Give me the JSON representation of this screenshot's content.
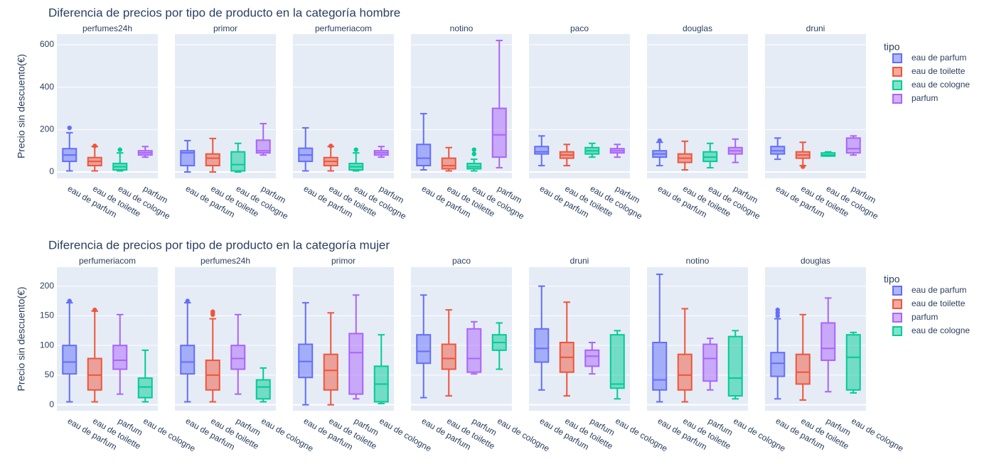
{
  "colors": {
    "eau de parfum": "#636efa",
    "eau de toilette": "#ef553b",
    "eau de cologne": "#00cc96",
    "parfum": "#ab63fa",
    "panel_bg": "#e5ecf6",
    "text": "#2a3f5f"
  },
  "chart_data": [
    {
      "type": "box",
      "title": "Diferencia de precios por tipo de producto en la categoría hombre",
      "ylabel": "Precio sin descuento(€)",
      "ylim": [
        -30,
        650
      ],
      "yticks": [
        0,
        200,
        400,
        600
      ],
      "legend_title": "tipo",
      "legend_position": "right",
      "grid": true,
      "categories": [
        "eau de parfum",
        "eau de toilette",
        "eau de cologne",
        "parfum"
      ],
      "facets": [
        {
          "name": "perfumes24h",
          "boxes": [
            {
              "q1": 50,
              "median": 80,
              "q3": 110,
              "low": 5,
              "high": 185,
              "outliers": [
                208
              ]
            },
            {
              "q1": 30,
              "median": 50,
              "q3": 68,
              "low": 5,
              "high": 120,
              "outliers": [
                123
              ]
            },
            {
              "q1": 10,
              "median": 25,
              "q3": 40,
              "low": 5,
              "high": 90,
              "outliers": [
                105
              ]
            },
            {
              "q1": 80,
              "median": 90,
              "q3": 100,
              "low": 70,
              "high": 120,
              "outliers": []
            }
          ]
        },
        {
          "name": "primor",
          "boxes": [
            {
              "q1": 30,
              "median": 90,
              "q3": 100,
              "low": 0,
              "high": 148,
              "outliers": []
            },
            {
              "q1": 30,
              "median": 65,
              "q3": 85,
              "low": 0,
              "high": 158,
              "outliers": []
            },
            {
              "q1": 5,
              "median": 35,
              "q3": 95,
              "low": 0,
              "high": 135,
              "outliers": []
            },
            {
              "q1": 90,
              "median": 100,
              "q3": 150,
              "low": 80,
              "high": 228,
              "outliers": []
            }
          ]
        },
        {
          "name": "perfumeriacom",
          "boxes": [
            {
              "q1": 50,
              "median": 80,
              "q3": 112,
              "low": 5,
              "high": 208,
              "outliers": []
            },
            {
              "q1": 30,
              "median": 50,
              "q3": 68,
              "low": 5,
              "high": 120,
              "outliers": [
                123
              ]
            },
            {
              "q1": 10,
              "median": 25,
              "q3": 40,
              "low": 5,
              "high": 90,
              "outliers": [
                105
              ]
            },
            {
              "q1": 80,
              "median": 90,
              "q3": 100,
              "low": 70,
              "high": 120,
              "outliers": []
            }
          ]
        },
        {
          "name": "notino",
          "boxes": [
            {
              "q1": 30,
              "median": 65,
              "q3": 130,
              "low": 10,
              "high": 275,
              "outliers": []
            },
            {
              "q1": 15,
              "median": 30,
              "q3": 65,
              "low": 5,
              "high": 115,
              "outliers": []
            },
            {
              "q1": 15,
              "median": 25,
              "q3": 40,
              "low": 5,
              "high": 60,
              "outliers": [
                85,
                105
              ]
            },
            {
              "q1": 70,
              "median": 175,
              "q3": 300,
              "low": 20,
              "high": 620,
              "outliers": []
            }
          ]
        },
        {
          "name": "paco",
          "boxes": [
            {
              "q1": 85,
              "median": 95,
              "q3": 120,
              "low": 30,
              "high": 170,
              "outliers": []
            },
            {
              "q1": 65,
              "median": 80,
              "q3": 95,
              "low": 30,
              "high": 130,
              "outliers": []
            },
            {
              "q1": 85,
              "median": 100,
              "q3": 115,
              "low": 70,
              "high": 135,
              "outliers": []
            },
            {
              "q1": 90,
              "median": 100,
              "q3": 110,
              "low": 70,
              "high": 130,
              "outliers": []
            }
          ]
        },
        {
          "name": "douglas",
          "boxes": [
            {
              "q1": 70,
              "median": 85,
              "q3": 100,
              "low": 30,
              "high": 140,
              "outliers": [
                148
              ]
            },
            {
              "q1": 45,
              "median": 65,
              "q3": 85,
              "low": 10,
              "high": 145,
              "outliers": []
            },
            {
              "q1": 50,
              "median": 70,
              "q3": 95,
              "low": 20,
              "high": 135,
              "outliers": []
            },
            {
              "q1": 85,
              "median": 100,
              "q3": 115,
              "low": 45,
              "high": 155,
              "outliers": []
            }
          ]
        },
        {
          "name": "druni",
          "boxes": [
            {
              "q1": 85,
              "median": 100,
              "q3": 120,
              "low": 60,
              "high": 160,
              "outliers": []
            },
            {
              "q1": 65,
              "median": 80,
              "q3": 95,
              "low": 30,
              "high": 140,
              "outliers": [
                25
              ]
            },
            {
              "q1": 75,
              "median": 80,
              "q3": 90,
              "low": 75,
              "high": 95,
              "outliers": []
            },
            {
              "q1": 90,
              "median": 110,
              "q3": 160,
              "low": 80,
              "high": 170,
              "outliers": []
            }
          ]
        }
      ]
    },
    {
      "type": "box",
      "title": "Diferencia de precios por tipo de producto en la categoría mujer",
      "ylabel": "Precio sin descuento(€)",
      "ylim": [
        -10,
        232
      ],
      "yticks": [
        0,
        50,
        100,
        150,
        200
      ],
      "legend_title": "tipo",
      "legend_position": "right",
      "grid": true,
      "categories": [
        "eau de parfum",
        "eau de toilette",
        "parfum",
        "eau de cologne"
      ],
      "facets": [
        {
          "name": "perfumeriacom",
          "boxes": [
            {
              "q1": 52,
              "median": 72,
              "q3": 100,
              "low": 5,
              "high": 172,
              "outliers": [
                175
              ]
            },
            {
              "q1": 25,
              "median": 50,
              "q3": 78,
              "low": 5,
              "high": 158,
              "outliers": [
                160
              ]
            },
            {
              "q1": 60,
              "median": 75,
              "q3": 100,
              "low": 18,
              "high": 152,
              "outliers": []
            },
            {
              "q1": 12,
              "median": 30,
              "q3": 45,
              "low": 5,
              "high": 92,
              "outliers": []
            }
          ]
        },
        {
          "name": "perfumes24h",
          "boxes": [
            {
              "q1": 52,
              "median": 72,
              "q3": 100,
              "low": 5,
              "high": 172,
              "outliers": [
                175
              ]
            },
            {
              "q1": 25,
              "median": 50,
              "q3": 75,
              "low": 5,
              "high": 145,
              "outliers": [
                152,
                155,
                157
              ]
            },
            {
              "q1": 60,
              "median": 78,
              "q3": 100,
              "low": 18,
              "high": 152,
              "outliers": []
            },
            {
              "q1": 10,
              "median": 30,
              "q3": 42,
              "low": 5,
              "high": 62,
              "outliers": []
            }
          ]
        },
        {
          "name": "primor",
          "boxes": [
            {
              "q1": 46,
              "median": 73,
              "q3": 102,
              "low": 0,
              "high": 172,
              "outliers": []
            },
            {
              "q1": 25,
              "median": 58,
              "q3": 85,
              "low": 0,
              "high": 155,
              "outliers": []
            },
            {
              "q1": 18,
              "median": 88,
              "q3": 120,
              "low": 10,
              "high": 185,
              "outliers": []
            },
            {
              "q1": 5,
              "median": 35,
              "q3": 65,
              "low": 2,
              "high": 118,
              "outliers": []
            }
          ]
        },
        {
          "name": "paco",
          "boxes": [
            {
              "q1": 70,
              "median": 90,
              "q3": 118,
              "low": 12,
              "high": 185,
              "outliers": []
            },
            {
              "q1": 60,
              "median": 78,
              "q3": 102,
              "low": 15,
              "high": 160,
              "outliers": []
            },
            {
              "q1": 55,
              "median": 78,
              "q3": 128,
              "low": 52,
              "high": 140,
              "outliers": []
            },
            {
              "q1": 92,
              "median": 105,
              "q3": 118,
              "low": 60,
              "high": 138,
              "outliers": []
            }
          ]
        },
        {
          "name": "druni",
          "boxes": [
            {
              "q1": 72,
              "median": 95,
              "q3": 128,
              "low": 25,
              "high": 200,
              "outliers": []
            },
            {
              "q1": 55,
              "median": 80,
              "q3": 105,
              "low": 15,
              "high": 173,
              "outliers": []
            },
            {
              "q1": 65,
              "median": 82,
              "q3": 92,
              "low": 52,
              "high": 105,
              "outliers": []
            },
            {
              "q1": 28,
              "median": 35,
              "q3": 118,
              "low": 10,
              "high": 125,
              "outliers": []
            }
          ]
        },
        {
          "name": "notino",
          "boxes": [
            {
              "q1": 25,
              "median": 42,
              "q3": 105,
              "low": 5,
              "high": 220,
              "outliers": []
            },
            {
              "q1": 25,
              "median": 50,
              "q3": 85,
              "low": 5,
              "high": 162,
              "outliers": []
            },
            {
              "q1": 40,
              "median": 78,
              "q3": 102,
              "low": 25,
              "high": 112,
              "outliers": []
            },
            {
              "q1": 15,
              "median": 45,
              "q3": 115,
              "low": 10,
              "high": 125,
              "outliers": []
            }
          ]
        },
        {
          "name": "douglas",
          "boxes": [
            {
              "q1": 48,
              "median": 70,
              "q3": 88,
              "low": 10,
              "high": 145,
              "outliers": [
                150,
                155,
                160
              ]
            },
            {
              "q1": 35,
              "median": 55,
              "q3": 85,
              "low": 8,
              "high": 152,
              "outliers": []
            },
            {
              "q1": 75,
              "median": 95,
              "q3": 138,
              "low": 22,
              "high": 180,
              "outliers": []
            },
            {
              "q1": 25,
              "median": 80,
              "q3": 118,
              "low": 20,
              "high": 122,
              "outliers": []
            }
          ]
        }
      ]
    }
  ]
}
